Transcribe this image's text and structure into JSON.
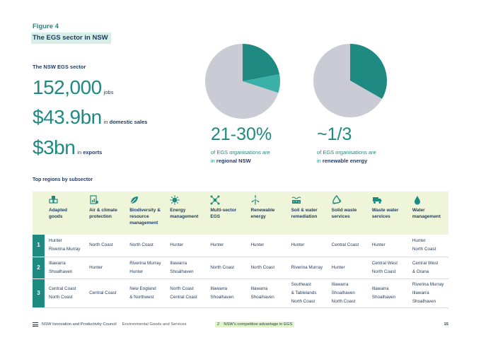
{
  "figure": {
    "label": "Figure 4",
    "title": "The EGS sector in NSW"
  },
  "sector": {
    "title": "The NSW EGS sector",
    "stats": [
      {
        "value": "152,000",
        "unit_pre": "jobs",
        "unit_bold": ""
      },
      {
        "value": "$43.9bn",
        "unit_pre": "in ",
        "unit_bold": "domestic sales"
      },
      {
        "value": "$3bn",
        "unit_pre": "in ",
        "unit_bold": "exports"
      }
    ]
  },
  "pies": [
    {
      "value": "21-30%",
      "line1": "of EGS organisations are",
      "line2_pre": "in ",
      "line2_bold": "regional NSW",
      "slices": [
        {
          "fraction": 0.22,
          "color": "#1e8a82"
        },
        {
          "fraction": 0.08,
          "color": "#3ab0a8"
        },
        {
          "fraction": 0.7,
          "color": "#cbcbd6"
        }
      ]
    },
    {
      "value": "~1/3",
      "line1": "of EGS organisations are",
      "line2_pre": "in ",
      "line2_bold": "renewable energy",
      "slices": [
        {
          "fraction": 0.333,
          "color": "#1e8a82"
        },
        {
          "fraction": 0.667,
          "color": "#cbcbd6"
        }
      ]
    }
  ],
  "table": {
    "title": "Top regions by subsector",
    "headers": [
      {
        "label": "Adapted goods",
        "icon": "boxes-icon"
      },
      {
        "label": "Air & climate protection",
        "icon": "document-chart-icon"
      },
      {
        "label": "Biodiversity & resource management",
        "icon": "leaf-icon"
      },
      {
        "label": "Energy management",
        "icon": "sun-gear-icon"
      },
      {
        "label": "Multi-sector EGS",
        "icon": "network-icon"
      },
      {
        "label": "Renewable energy",
        "icon": "wind-turbine-icon"
      },
      {
        "label": "Soil & water remediation",
        "icon": "soil-icon"
      },
      {
        "label": "Solid waste services",
        "icon": "recycle-icon"
      },
      {
        "label": "Waste water services",
        "icon": "truck-icon"
      },
      {
        "label": "Water management",
        "icon": "water-drop-icon"
      }
    ],
    "rows": [
      {
        "rank": "1",
        "cells": [
          [
            "Hunter",
            "Riverina Murray"
          ],
          [
            "North Coast"
          ],
          [
            "North Coast"
          ],
          [
            "Hunter"
          ],
          [
            "Hunter"
          ],
          [
            "Hunter"
          ],
          [
            "Hunter"
          ],
          [
            "Central Coast"
          ],
          [
            "Hunter"
          ],
          [
            "Hunter",
            "North Coast"
          ]
        ]
      },
      {
        "rank": "2",
        "cells": [
          [
            "Illawarra",
            "Shoalhaven"
          ],
          [
            "Hunter"
          ],
          [
            "Riverina Murray",
            "Hunter"
          ],
          [
            "Illawarra",
            "Shoalhaven"
          ],
          [
            "North Coast"
          ],
          [
            "North Coast"
          ],
          [
            "Riverina Murray"
          ],
          [
            "Hunter"
          ],
          [
            "Central West",
            "North Coast"
          ],
          [
            "Central West",
            "& Orana"
          ]
        ]
      },
      {
        "rank": "3",
        "cells": [
          [
            "Central Coast",
            "North Coast"
          ],
          [
            "Central Coast"
          ],
          [
            "New England",
            "& Northwest"
          ],
          [
            "North Coast",
            "Central Coast"
          ],
          [
            "Illawarra",
            "Shoalhaven"
          ],
          [
            "Illawarra",
            "Shoalhaven"
          ],
          [
            "Southeast",
            "& Tablelands",
            "North Coast"
          ],
          [
            "Illawarra",
            "Shoalhaven",
            "North Coast"
          ],
          [
            "Illawarra",
            "Shoalhaven"
          ],
          [
            "Riverina Murray",
            "Illawarra",
            "Shoalhaven"
          ]
        ]
      }
    ]
  },
  "footer": {
    "org": "NSW Innovation and Productivity Council",
    "subtitle": "Environmental Goods and Services",
    "chapter_num": "2",
    "chapter": "NSW's competitive advantage in EGS",
    "page": "15"
  }
}
